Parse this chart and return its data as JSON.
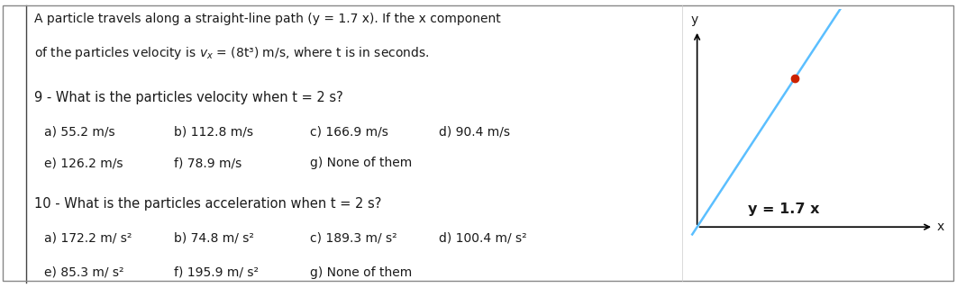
{
  "bg_color": "#ffffff",
  "title_line1": "A particle travels along a straight-line path (y = 1.7 x). If the x component",
  "title_line2": "of the particles velocity is $v_x$ = (8t³) m/s, where t is in seconds.",
  "q9_text": "9 - What is the particles velocity when t = 2 s?",
  "q9_row1": [
    "a) 55.2 m/s",
    "b) 112.8 m/s",
    "c) 166.9 m/s",
    "d) 90.4 m/s"
  ],
  "q9_row2": [
    "e) 126.2 m/s",
    "f) 78.9 m/s",
    "g) None of them"
  ],
  "q10_text": "10 - What is the particles acceleration when t = 2 s?",
  "q10_row1": [
    "a) 172.2 m/ s²",
    "b) 74.8 m/ s²",
    "c) 189.3 m/ s²",
    "d) 100.4 m/ s²"
  ],
  "q10_row2": [
    "e) 85.3 m/ s²",
    "f) 195.9 m/ s²",
    "g) None of them"
  ],
  "diagram_line_color": "#5bbfff",
  "diagram_point_color": "#cc2200",
  "diagram_label": "y = 1.7 x",
  "axis_color": "#000000",
  "border_color": "#888888",
  "text_color": "#1a1a1a",
  "opt_cols": [
    0.065,
    0.255,
    0.455,
    0.645
  ],
  "font_size_title": 10.0,
  "font_size_q": 10.5,
  "font_size_opt": 10.0,
  "font_size_diag_label": 11.5,
  "font_size_axis_label": 10.0
}
